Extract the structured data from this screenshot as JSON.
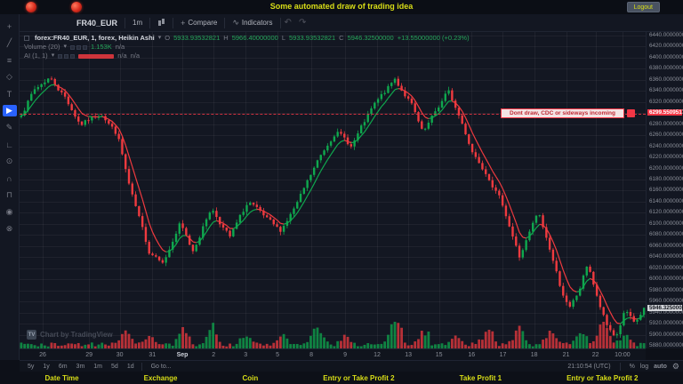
{
  "topbar": {
    "title": "Some automated draw of trading idea",
    "logout": "Logout"
  },
  "toolbar": {
    "symbol": "FR40_EUR",
    "interval": "1m",
    "compare": "Compare",
    "indicators": "Indicators"
  },
  "icons": {
    "caret_down": "▾",
    "compare": "+",
    "indicators": "∿",
    "undo": "↶",
    "redo": "↷",
    "gear": "⚙"
  },
  "header": {
    "symbol_text": "forex:FR40_EUR, 1, forex, Heikin Ashi",
    "o_label": "O",
    "o_value": "5933.93532821",
    "h_label": "H",
    "h_value": "5966.40000000",
    "l_label": "L",
    "l_value": "5933.93532821",
    "c_label": "C",
    "c_value": "5946.32500000",
    "change": "+13.55000000 (+0.23%)",
    "volume_name": "Volume (20)",
    "volume_value": "1.153K",
    "volume_na": "n/a",
    "ai_name": "AI (1, 1)",
    "ai_na1": "n/a",
    "ai_na2": "n/a"
  },
  "alert": {
    "text": "Dont draw, CDC or sideways incoming",
    "axis_label": "6299.55095172",
    "price": 6299.55
  },
  "price_axis": {
    "labels": [
      "6440.00000000",
      "6420.00000000",
      "6400.00000000",
      "6380.00000000",
      "6360.00000000",
      "6340.00000000",
      "6320.00000000",
      "6280.00000000",
      "6260.00000000",
      "6240.00000000",
      "6220.00000000",
      "6200.00000000",
      "6180.00000000",
      "6160.00000000",
      "6140.00000000",
      "6120.00000000",
      "6100.00000000",
      "6080.00000000",
      "6060.00000000",
      "6040.00000000",
      "6020.00000000",
      "6000.00000000",
      "5980.00000000",
      "5960.00000000",
      "5940.00000000",
      "5920.00000000",
      "5900.00000000",
      "5880.00000000"
    ],
    "current_label": "5946.32500000",
    "current_price": 5946.325
  },
  "time_axis": {
    "labels": [
      {
        "t": 0.037,
        "label": "26"
      },
      {
        "t": 0.111,
        "label": "29"
      },
      {
        "t": 0.16,
        "label": "30"
      },
      {
        "t": 0.212,
        "label": "31"
      },
      {
        "t": 0.26,
        "label": "Sep"
      },
      {
        "t": 0.31,
        "label": "2"
      },
      {
        "t": 0.361,
        "label": "3"
      },
      {
        "t": 0.412,
        "label": "5"
      },
      {
        "t": 0.466,
        "label": "8"
      },
      {
        "t": 0.52,
        "label": "9"
      },
      {
        "t": 0.571,
        "label": "12"
      },
      {
        "t": 0.621,
        "label": "13"
      },
      {
        "t": 0.67,
        "label": "15"
      },
      {
        "t": 0.722,
        "label": "16"
      },
      {
        "t": 0.772,
        "label": "17"
      },
      {
        "t": 0.822,
        "label": "18"
      },
      {
        "t": 0.873,
        "label": "21"
      },
      {
        "t": 0.92,
        "label": "22"
      },
      {
        "t": 0.963,
        "label": "10:00"
      }
    ]
  },
  "bottom_toolbar": {
    "ranges": [
      "5y",
      "1y",
      "6m",
      "3m",
      "1m",
      "5d",
      "1d"
    ],
    "goto": "Go to...",
    "clock": "21:10:54 (UTC)",
    "percent": "%",
    "log": "log",
    "auto": "auto"
  },
  "bottom_labels": [
    "Date Time",
    "Exchange",
    "Coin",
    "Entry or Take Profit 2",
    "Take Profit 1",
    "Entry or Take Profit 2"
  ],
  "watermark": "Chart by TradingView",
  "sidebar": {
    "tools": [
      {
        "name": "crosshair-tool",
        "glyph": "+",
        "active": false
      },
      {
        "name": "trend-line-tool",
        "glyph": "╱",
        "active": false
      },
      {
        "name": "fibonacci-tool",
        "glyph": "≡",
        "active": false
      },
      {
        "name": "shapes-tool",
        "glyph": "◇",
        "active": false
      },
      {
        "name": "text-tool",
        "glyph": "T",
        "active": false
      },
      {
        "name": "arrow-tool",
        "glyph": "▶",
        "active": true
      },
      {
        "name": "brush-tool",
        "glyph": "✎",
        "active": false
      },
      {
        "name": "measure-tool",
        "glyph": "∟",
        "active": false
      },
      {
        "name": "zoom-tool",
        "glyph": "⊙",
        "active": false
      },
      {
        "name": "magnet-tool",
        "glyph": "∩",
        "active": false
      },
      {
        "name": "lock-tool",
        "glyph": "⊓",
        "active": false
      },
      {
        "name": "hide-drawings-tool",
        "glyph": "◉",
        "active": false
      },
      {
        "name": "remove-drawings-tool",
        "glyph": "⊗",
        "active": false
      }
    ]
  },
  "chart_data": {
    "type": "candlestick",
    "style": "heikin-ashi",
    "symbol": "FR40_EUR",
    "interval": "1",
    "title": "forex:FR40_EUR, 1, forex, Heikin Ashi",
    "price_max": 6446.4,
    "price_min": 5875.2,
    "grid_price_step": 20,
    "candle_count": 186,
    "seed": 7,
    "up_color": "#0fa84e",
    "down_color": "#ef3a3f",
    "volume_up_color": "rgba(15,168,78,0.75)",
    "volume_down_color": "rgba(239,58,63,0.75)",
    "alert_line_color": "#f23645",
    "last_close": 5946.325,
    "waypoints": [
      [
        0.0,
        6300
      ],
      [
        0.02,
        6340
      ],
      [
        0.045,
        6365
      ],
      [
        0.07,
        6330
      ],
      [
        0.095,
        6280
      ],
      [
        0.13,
        6300
      ],
      [
        0.155,
        6260
      ],
      [
        0.175,
        6160
      ],
      [
        0.205,
        6050
      ],
      [
        0.23,
        6035
      ],
      [
        0.255,
        6100
      ],
      [
        0.275,
        6050
      ],
      [
        0.305,
        6130
      ],
      [
        0.335,
        6075
      ],
      [
        0.365,
        6140
      ],
      [
        0.39,
        6110
      ],
      [
        0.415,
        6085
      ],
      [
        0.445,
        6140
      ],
      [
        0.475,
        6210
      ],
      [
        0.505,
        6270
      ],
      [
        0.53,
        6240
      ],
      [
        0.565,
        6310
      ],
      [
        0.6,
        6360
      ],
      [
        0.625,
        6320
      ],
      [
        0.645,
        6260
      ],
      [
        0.665,
        6300
      ],
      [
        0.685,
        6340
      ],
      [
        0.705,
        6290
      ],
      [
        0.725,
        6230
      ],
      [
        0.75,
        6190
      ],
      [
        0.775,
        6130
      ],
      [
        0.8,
        6040
      ],
      [
        0.815,
        6080
      ],
      [
        0.83,
        6120
      ],
      [
        0.85,
        6050
      ],
      [
        0.865,
        5990
      ],
      [
        0.88,
        5945
      ],
      [
        0.895,
        5975
      ],
      [
        0.91,
        6030
      ],
      [
        0.925,
        5965
      ],
      [
        0.94,
        5915
      ],
      [
        0.955,
        5895
      ],
      [
        0.97,
        5945
      ],
      [
        0.985,
        5915
      ],
      [
        1.0,
        5946
      ]
    ],
    "volume_spikes": [
      [
        0.17,
        0.45
      ],
      [
        0.205,
        0.3
      ],
      [
        0.26,
        0.55
      ],
      [
        0.305,
        0.55
      ],
      [
        0.36,
        0.3
      ],
      [
        0.42,
        0.35
      ],
      [
        0.475,
        0.6
      ],
      [
        0.52,
        0.3
      ],
      [
        0.6,
        0.85
      ],
      [
        0.645,
        0.4
      ],
      [
        0.7,
        0.3
      ],
      [
        0.75,
        0.5
      ],
      [
        0.8,
        0.55
      ],
      [
        0.85,
        0.45
      ],
      [
        0.9,
        0.4
      ],
      [
        0.935,
        0.8
      ],
      [
        0.97,
        0.35
      ]
    ]
  }
}
